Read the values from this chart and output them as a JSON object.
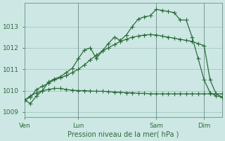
{
  "xlabel": "Pression niveau de la mer( hPa )",
  "background_color": "#cde8e4",
  "plot_bg_color": "#cde8e4",
  "grid_color": "#a8ccc8",
  "line_color": "#2d6b3c",
  "ylim": [
    1008.75,
    1014.1
  ],
  "yticks": [
    1009,
    1010,
    1011,
    1012,
    1013
  ],
  "xtick_labels": [
    "Ven",
    "Lun",
    "Sam",
    "Dim"
  ],
  "xtick_positions": [
    0,
    9,
    22,
    30
  ],
  "vline_positions": [
    0,
    9,
    22,
    30
  ],
  "series1_x": [
    0,
    1,
    2,
    3,
    4,
    5,
    6,
    7,
    8,
    9,
    10,
    11,
    12,
    13,
    14,
    15,
    16,
    17,
    18,
    19,
    20,
    21,
    22,
    23,
    24,
    25,
    26,
    27,
    28,
    29,
    30,
    31,
    32,
    33
  ],
  "series1_y": [
    1009.55,
    1009.4,
    1009.75,
    1010.0,
    1010.4,
    1010.55,
    1010.65,
    1010.85,
    1011.05,
    1011.5,
    1011.9,
    1012.0,
    1011.5,
    1011.85,
    1012.2,
    1012.5,
    1012.35,
    1012.6,
    1013.0,
    1013.35,
    1013.45,
    1013.5,
    1013.8,
    1013.75,
    1013.7,
    1013.65,
    1013.3,
    1013.3,
    1012.5,
    1011.5,
    1010.5,
    1009.9,
    1009.75,
    1009.7
  ],
  "series2_x": [
    0,
    1,
    2,
    3,
    4,
    5,
    6,
    7,
    8,
    9,
    10,
    11,
    12,
    13,
    14,
    15,
    16,
    17,
    18,
    19,
    20,
    21,
    22,
    23,
    24,
    25,
    26,
    27,
    28,
    29,
    30,
    31,
    32,
    33
  ],
  "series2_y": [
    1009.55,
    1009.7,
    1010.05,
    1010.2,
    1010.35,
    1010.5,
    1010.6,
    1010.7,
    1010.85,
    1011.0,
    1011.2,
    1011.45,
    1011.65,
    1011.85,
    1012.0,
    1012.15,
    1012.3,
    1012.4,
    1012.5,
    1012.55,
    1012.6,
    1012.62,
    1012.6,
    1012.55,
    1012.5,
    1012.45,
    1012.4,
    1012.35,
    1012.3,
    1012.2,
    1012.1,
    1010.5,
    1009.85,
    1009.7
  ],
  "series3_x": [
    0,
    1,
    2,
    3,
    4,
    5,
    6,
    7,
    8,
    9,
    10,
    11,
    12,
    13,
    14,
    15,
    16,
    17,
    18,
    19,
    20,
    21,
    22,
    23,
    24,
    25,
    26,
    27,
    28,
    29,
    30,
    31,
    32,
    33
  ],
  "series3_y": [
    1009.55,
    1009.75,
    1009.9,
    1010.0,
    1010.05,
    1010.1,
    1010.1,
    1010.05,
    1010.02,
    1010.0,
    1010.0,
    1009.98,
    1009.97,
    1009.97,
    1009.95,
    1009.93,
    1009.92,
    1009.9,
    1009.9,
    1009.87,
    1009.87,
    1009.85,
    1009.85,
    1009.85,
    1009.85,
    1009.85,
    1009.85,
    1009.85,
    1009.85,
    1009.85,
    1009.85,
    1009.85,
    1009.85,
    1009.85
  ],
  "n_points": 34
}
